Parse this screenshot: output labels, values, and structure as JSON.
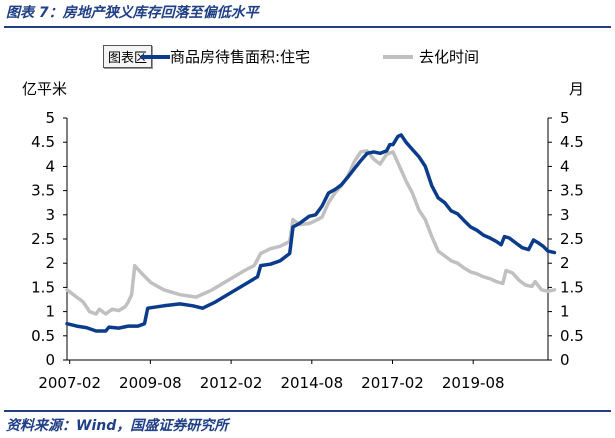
{
  "figure": {
    "title": "图表 7：房地产狭义库存回落至偏低水平",
    "source": "资料来源：Wind，国盛证券研究所",
    "legend_badge": "图表区"
  },
  "colors": {
    "series1": "#0b3c8c",
    "series2": "#c0c0c0",
    "accent": "#1f3f86"
  },
  "chart_data": {
    "type": "line",
    "left_unit": "亿平米",
    "right_unit": "月",
    "x_ticks": [
      "2007-02",
      "2009-08",
      "2012-02",
      "2014-08",
      "2017-02",
      "2019-08"
    ],
    "x_range": [
      2007.0,
      2021.9
    ],
    "y_left": {
      "range": [
        0,
        5
      ],
      "ticks": [
        "0",
        "0.5",
        "1",
        "1.5",
        "2",
        "2.5",
        "3",
        "3.5",
        "4",
        "4.5",
        "5"
      ]
    },
    "y_right": {
      "range": [
        0,
        5
      ],
      "ticks": [
        "0",
        "0.5",
        "1",
        "1.5",
        "2",
        "2.5",
        "3",
        "3.5",
        "4",
        "4.5",
        "5"
      ]
    },
    "series": [
      {
        "name": "商品房待售面积:住宅",
        "axis": "left",
        "points": [
          [
            2007.0,
            0.75
          ],
          [
            2007.3,
            0.7
          ],
          [
            2007.6,
            0.67
          ],
          [
            2007.9,
            0.6
          ],
          [
            2008.2,
            0.6
          ],
          [
            2008.3,
            0.68
          ],
          [
            2008.6,
            0.66
          ],
          [
            2008.9,
            0.7
          ],
          [
            2009.2,
            0.7
          ],
          [
            2009.4,
            0.75
          ],
          [
            2009.5,
            1.07
          ],
          [
            2010.0,
            1.12
          ],
          [
            2010.5,
            1.16
          ],
          [
            2010.9,
            1.12
          ],
          [
            2011.2,
            1.07
          ],
          [
            2011.6,
            1.2
          ],
          [
            2012.1,
            1.4
          ],
          [
            2012.6,
            1.6
          ],
          [
            2012.9,
            1.72
          ],
          [
            2013.0,
            1.95
          ],
          [
            2013.3,
            1.98
          ],
          [
            2013.6,
            2.05
          ],
          [
            2013.9,
            2.2
          ],
          [
            2014.0,
            2.75
          ],
          [
            2014.2,
            2.82
          ],
          [
            2014.5,
            2.97
          ],
          [
            2014.7,
            3.0
          ],
          [
            2014.9,
            3.18
          ],
          [
            2015.1,
            3.45
          ],
          [
            2015.3,
            3.52
          ],
          [
            2015.5,
            3.62
          ],
          [
            2015.7,
            3.78
          ],
          [
            2015.9,
            3.95
          ],
          [
            2016.1,
            4.12
          ],
          [
            2016.3,
            4.27
          ],
          [
            2016.5,
            4.3
          ],
          [
            2016.7,
            4.27
          ],
          [
            2016.9,
            4.32
          ],
          [
            2017.0,
            4.45
          ],
          [
            2017.1,
            4.45
          ],
          [
            2017.25,
            4.62
          ],
          [
            2017.35,
            4.65
          ],
          [
            2017.5,
            4.5
          ],
          [
            2017.7,
            4.35
          ],
          [
            2017.9,
            4.2
          ],
          [
            2018.1,
            4.0
          ],
          [
            2018.3,
            3.6
          ],
          [
            2018.5,
            3.35
          ],
          [
            2018.7,
            3.25
          ],
          [
            2018.9,
            3.08
          ],
          [
            2019.1,
            3.02
          ],
          [
            2019.3,
            2.88
          ],
          [
            2019.5,
            2.75
          ],
          [
            2019.7,
            2.68
          ],
          [
            2019.9,
            2.58
          ],
          [
            2020.1,
            2.52
          ],
          [
            2020.3,
            2.45
          ],
          [
            2020.45,
            2.38
          ],
          [
            2020.55,
            2.55
          ],
          [
            2020.7,
            2.52
          ],
          [
            2020.9,
            2.42
          ],
          [
            2021.1,
            2.32
          ],
          [
            2021.3,
            2.28
          ],
          [
            2021.45,
            2.48
          ],
          [
            2021.6,
            2.42
          ],
          [
            2021.75,
            2.35
          ],
          [
            2021.9,
            2.25
          ],
          [
            2022.1,
            2.22
          ]
        ]
      },
      {
        "name": "去化时间",
        "axis": "right",
        "points": [
          [
            2007.0,
            1.45
          ],
          [
            2007.3,
            1.3
          ],
          [
            2007.5,
            1.2
          ],
          [
            2007.7,
            1.0
          ],
          [
            2007.9,
            0.95
          ],
          [
            2008.0,
            1.05
          ],
          [
            2008.2,
            0.95
          ],
          [
            2008.4,
            1.05
          ],
          [
            2008.6,
            1.02
          ],
          [
            2008.8,
            1.1
          ],
          [
            2008.9,
            1.2
          ],
          [
            2009.0,
            1.35
          ],
          [
            2009.1,
            1.95
          ],
          [
            2009.3,
            1.8
          ],
          [
            2009.6,
            1.6
          ],
          [
            2010.0,
            1.45
          ],
          [
            2010.5,
            1.35
          ],
          [
            2011.0,
            1.3
          ],
          [
            2011.5,
            1.45
          ],
          [
            2012.0,
            1.65
          ],
          [
            2012.5,
            1.85
          ],
          [
            2012.8,
            1.95
          ],
          [
            2013.0,
            2.2
          ],
          [
            2013.3,
            2.3
          ],
          [
            2013.6,
            2.35
          ],
          [
            2013.9,
            2.45
          ],
          [
            2014.0,
            2.9
          ],
          [
            2014.2,
            2.8
          ],
          [
            2014.5,
            2.82
          ],
          [
            2014.7,
            2.88
          ],
          [
            2014.9,
            2.95
          ],
          [
            2015.1,
            3.25
          ],
          [
            2015.3,
            3.45
          ],
          [
            2015.5,
            3.6
          ],
          [
            2015.7,
            3.8
          ],
          [
            2015.9,
            4.1
          ],
          [
            2016.1,
            4.3
          ],
          [
            2016.3,
            4.32
          ],
          [
            2016.5,
            4.15
          ],
          [
            2016.7,
            4.05
          ],
          [
            2016.9,
            4.25
          ],
          [
            2017.1,
            4.3
          ],
          [
            2017.3,
            4.0
          ],
          [
            2017.5,
            3.7
          ],
          [
            2017.7,
            3.45
          ],
          [
            2017.9,
            3.1
          ],
          [
            2018.1,
            2.9
          ],
          [
            2018.3,
            2.55
          ],
          [
            2018.5,
            2.25
          ],
          [
            2018.7,
            2.15
          ],
          [
            2018.9,
            2.05
          ],
          [
            2019.1,
            2.0
          ],
          [
            2019.3,
            1.9
          ],
          [
            2019.5,
            1.82
          ],
          [
            2019.7,
            1.78
          ],
          [
            2019.9,
            1.72
          ],
          [
            2020.1,
            1.68
          ],
          [
            2020.3,
            1.62
          ],
          [
            2020.5,
            1.58
          ],
          [
            2020.6,
            1.85
          ],
          [
            2020.8,
            1.8
          ],
          [
            2021.0,
            1.65
          ],
          [
            2021.2,
            1.55
          ],
          [
            2021.4,
            1.52
          ],
          [
            2021.5,
            1.62
          ],
          [
            2021.7,
            1.45
          ],
          [
            2021.9,
            1.42
          ],
          [
            2022.1,
            1.45
          ]
        ]
      }
    ],
    "grid": false,
    "legend_position": "top"
  }
}
